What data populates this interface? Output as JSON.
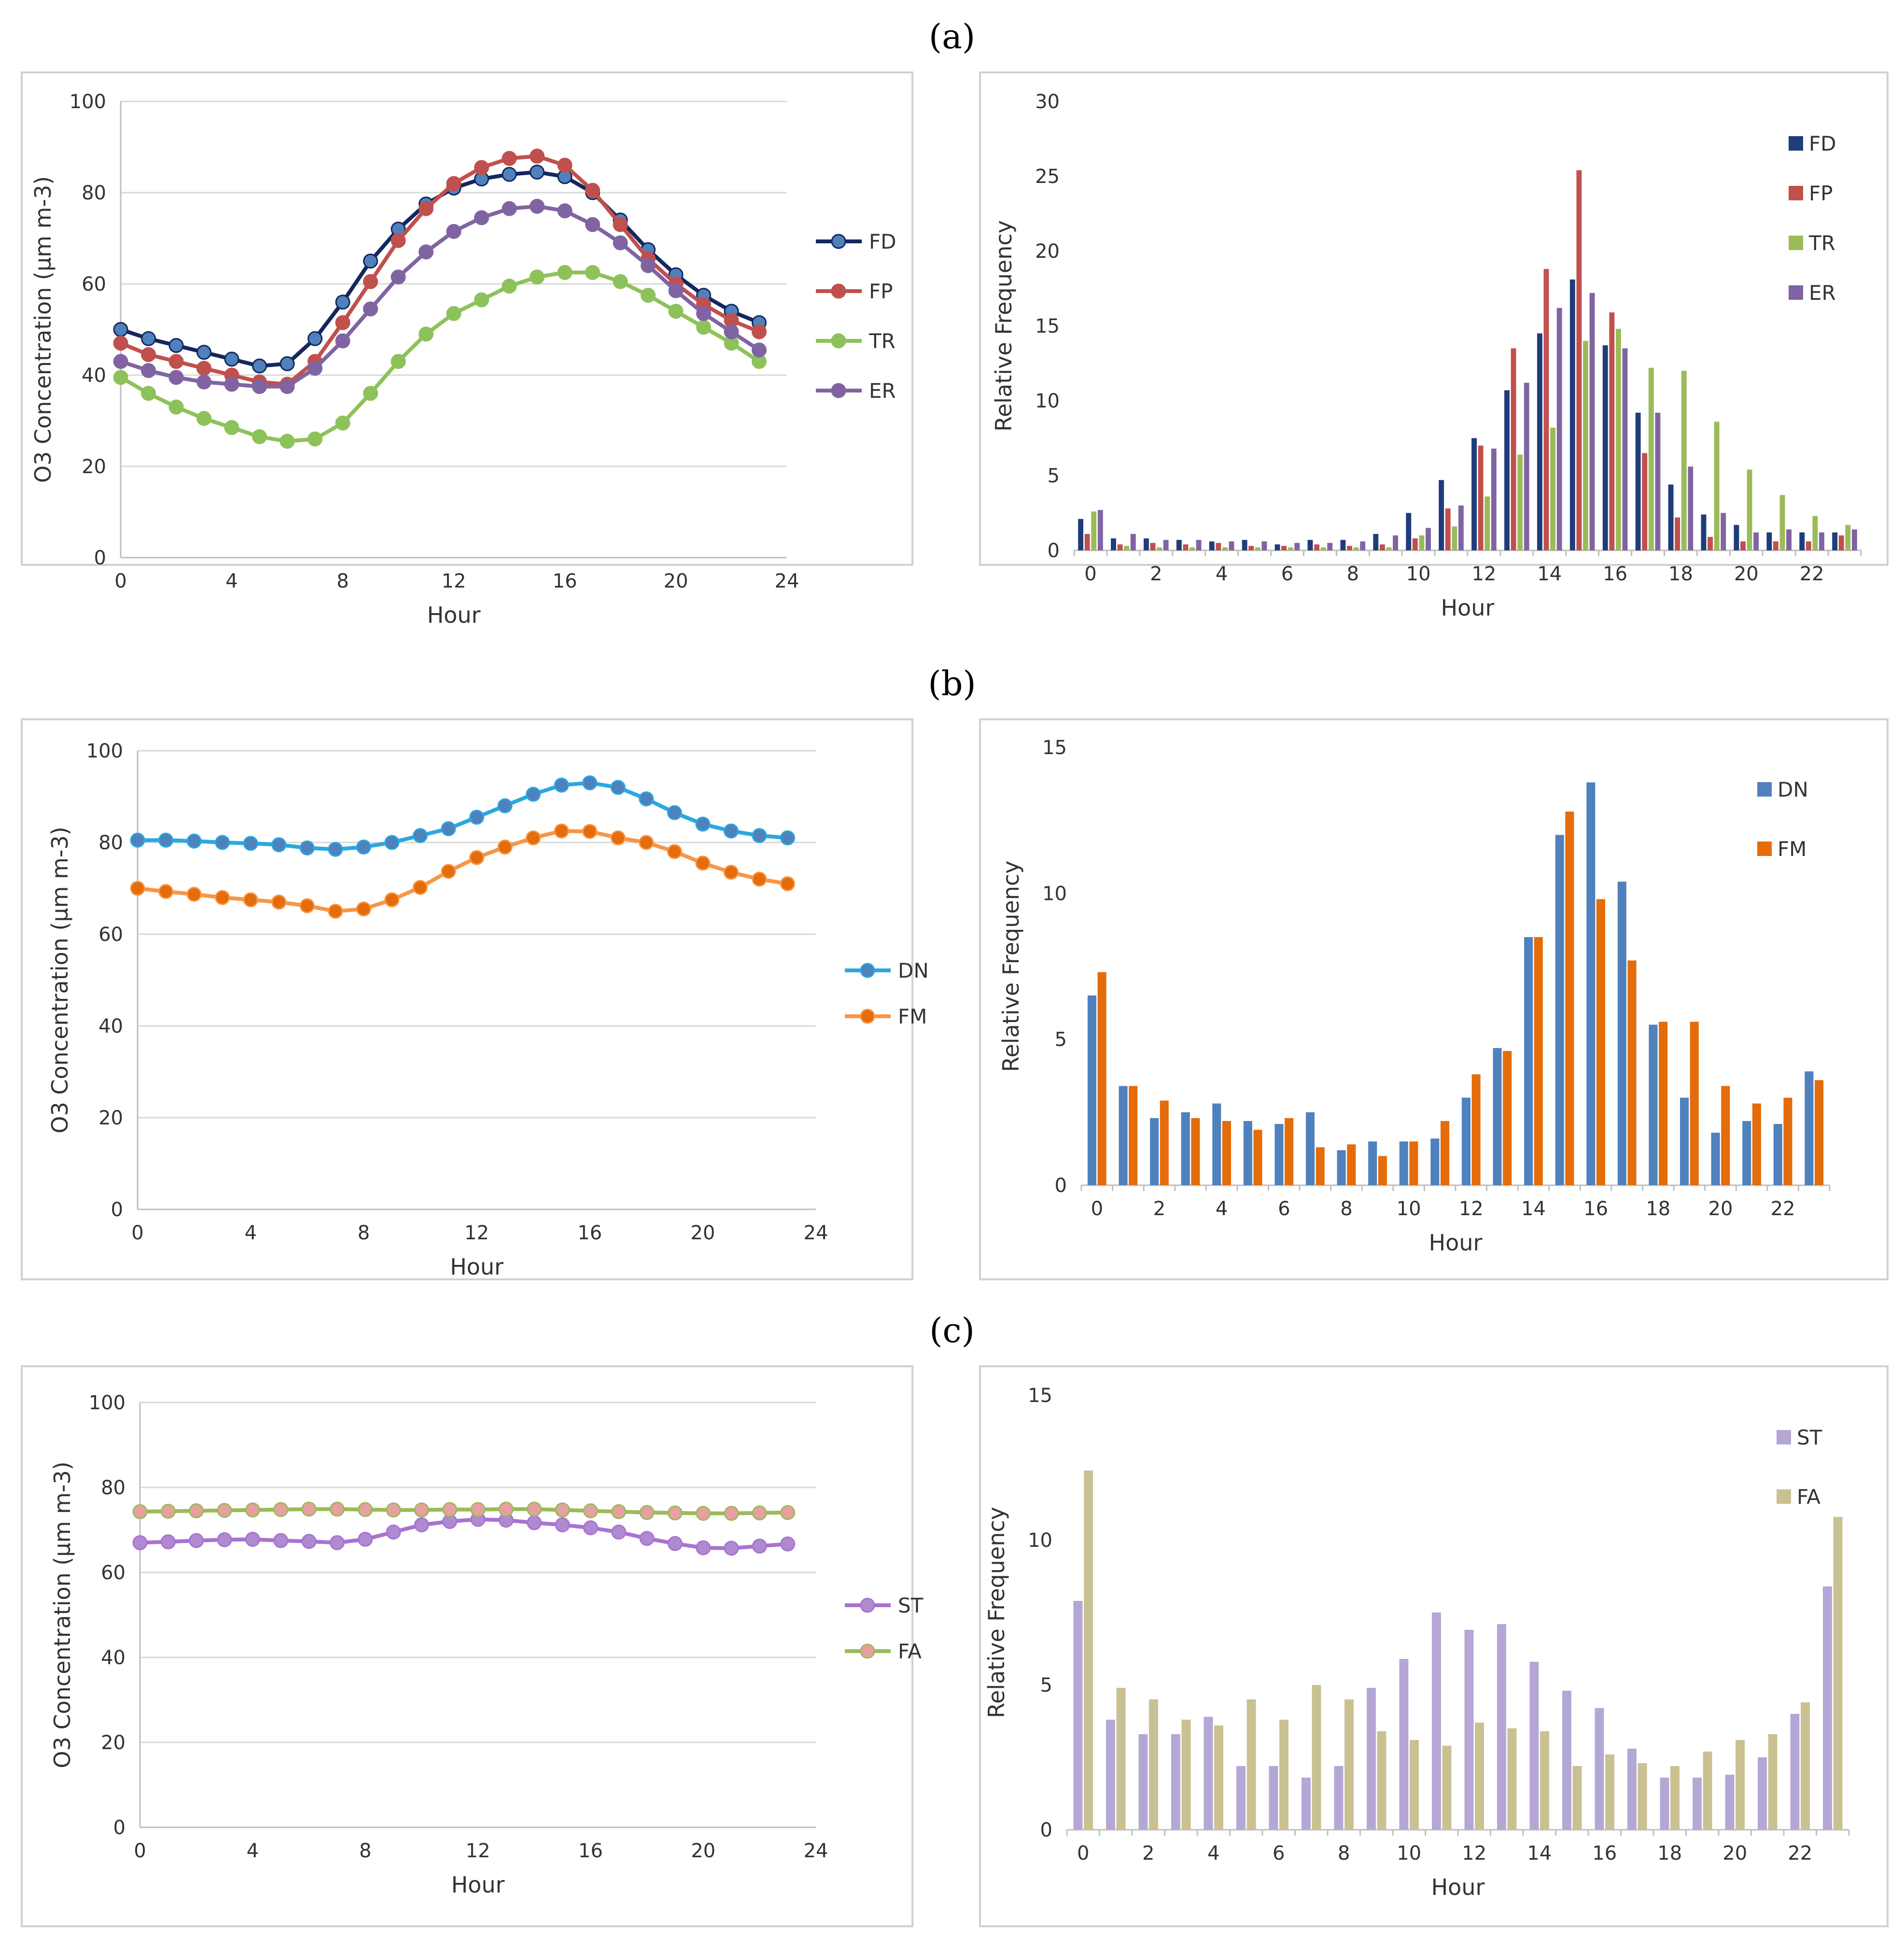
{
  "panels": [
    {
      "label": "(a)",
      "charts": [
        {
          "type": "line",
          "title": "",
          "xlabel": "Hour",
          "ylabel": "O3 Concentration (μm m-3)",
          "xlim": [
            0,
            24
          ],
          "ylim": [
            0,
            100
          ],
          "xticks": [
            0,
            4,
            8,
            12,
            16,
            20,
            24
          ],
          "yticks": [
            0,
            20,
            40,
            60,
            80,
            100
          ],
          "grid": true,
          "legend": "right",
          "x": [
            0,
            1,
            2,
            3,
            4,
            5,
            6,
            7,
            8,
            9,
            10,
            11,
            12,
            13,
            14,
            15,
            16,
            17,
            18,
            19,
            20,
            21,
            22,
            23
          ],
          "series": [
            {
              "name": "FD",
              "color": "#14275e",
              "marker_fill": "#4f81bd",
              "values": [
                50,
                48,
                46.5,
                45,
                43.5,
                42,
                42.5,
                48,
                56,
                65,
                72,
                77.5,
                81,
                83,
                84,
                84.5,
                83.5,
                80,
                74,
                67.5,
                62,
                57.5,
                54,
                51.5
              ]
            },
            {
              "name": "FP",
              "color": "#c0504d",
              "marker_fill": "#c0504d",
              "values": [
                47,
                44.5,
                43,
                41.5,
                40,
                38.5,
                38,
                43,
                51.5,
                60.5,
                69.5,
                76.5,
                82,
                85.5,
                87.5,
                88,
                86,
                80.5,
                73,
                65.5,
                60,
                55.5,
                52,
                49.5
              ]
            },
            {
              "name": "TR",
              "color": "#8dc25a",
              "marker_fill": "#8dc25a",
              "values": [
                39.5,
                36,
                33,
                30.5,
                28.5,
                26.5,
                25.5,
                26,
                29.5,
                36,
                43,
                49,
                53.5,
                56.5,
                59.5,
                61.5,
                62.5,
                62.5,
                60.5,
                57.5,
                54,
                50.5,
                47,
                43
              ]
            },
            {
              "name": "ER",
              "color": "#8064a2",
              "marker_fill": "#8064a2",
              "values": [
                43,
                41,
                39.5,
                38.5,
                38,
                37.5,
                37.5,
                41.5,
                47.5,
                54.5,
                61.5,
                67,
                71.5,
                74.5,
                76.5,
                77,
                76,
                73,
                69,
                64,
                58.5,
                53.5,
                49.5,
                45.5
              ]
            }
          ]
        },
        {
          "type": "bar",
          "title": "",
          "xlabel": "Hour",
          "ylabel": "Relative Frequency",
          "ylim": [
            0,
            30
          ],
          "yticks": [
            0,
            5,
            10,
            15,
            20,
            25,
            30
          ],
          "grid": false,
          "legend": "top-right",
          "categories": [
            0,
            1,
            2,
            3,
            4,
            5,
            6,
            7,
            8,
            9,
            10,
            11,
            12,
            13,
            14,
            15,
            16,
            17,
            18,
            19,
            20,
            21,
            22,
            23
          ],
          "xtick_labels": [
            "0",
            "2",
            "4",
            "6",
            "8",
            "10",
            "12",
            "14",
            "16",
            "18",
            "20",
            "22"
          ],
          "series": [
            {
              "name": "FD",
              "color": "#1f3d7a",
              "values": [
                2.1,
                0.8,
                0.8,
                0.7,
                0.6,
                0.7,
                0.4,
                0.7,
                0.7,
                1.1,
                2.5,
                4.7,
                7.5,
                10.7,
                14.5,
                18.1,
                13.7,
                9.2,
                4.4,
                2.4,
                1.7,
                1.2,
                1.2,
                1.2
              ]
            },
            {
              "name": "FP",
              "color": "#c0504d",
              "values": [
                1.1,
                0.4,
                0.5,
                0.4,
                0.5,
                0.3,
                0.3,
                0.4,
                0.3,
                0.4,
                0.8,
                2.8,
                7.0,
                13.5,
                18.8,
                25.4,
                15.9,
                6.5,
                2.2,
                0.9,
                0.6,
                0.6,
                0.6,
                1.0
              ]
            },
            {
              "name": "TR",
              "color": "#9bbb59",
              "values": [
                2.6,
                0.3,
                0.2,
                0.2,
                0.2,
                0.2,
                0.2,
                0.2,
                0.2,
                0.2,
                1.0,
                1.6,
                3.6,
                6.4,
                8.2,
                14.0,
                14.8,
                12.2,
                12.0,
                8.6,
                5.4,
                3.7,
                2.3,
                1.7
              ]
            },
            {
              "name": "ER",
              "color": "#8064a2",
              "values": [
                2.7,
                1.1,
                0.7,
                0.7,
                0.6,
                0.6,
                0.5,
                0.5,
                0.6,
                1.0,
                1.5,
                3.0,
                6.8,
                11.2,
                16.2,
                17.2,
                13.5,
                9.2,
                5.6,
                2.5,
                1.2,
                1.4,
                1.2,
                1.4
              ]
            }
          ]
        }
      ]
    },
    {
      "label": "(b)",
      "charts": [
        {
          "type": "line",
          "title": "",
          "xlabel": "Hour",
          "ylabel": "O3 Concentration (μm m-3)",
          "xlim": [
            0,
            24
          ],
          "ylim": [
            0,
            100
          ],
          "xticks": [
            0,
            4,
            8,
            12,
            16,
            20,
            24
          ],
          "yticks": [
            0,
            20,
            40,
            60,
            80,
            100
          ],
          "grid": true,
          "legend": "right",
          "x": [
            0,
            1,
            2,
            3,
            4,
            5,
            6,
            7,
            8,
            9,
            10,
            11,
            12,
            13,
            14,
            15,
            16,
            17,
            18,
            19,
            20,
            21,
            22,
            23
          ],
          "series": [
            {
              "name": "DN",
              "color": "#2aa8e0",
              "marker_fill": "#4f81bd",
              "values": [
                80.5,
                80.5,
                80.3,
                80,
                79.8,
                79.5,
                78.8,
                78.5,
                79,
                80,
                81.5,
                83,
                85.5,
                88,
                90.5,
                92.5,
                93,
                92,
                89.5,
                86.5,
                84,
                82.5,
                81.5,
                81
              ]
            },
            {
              "name": "FM",
              "color": "#f79646",
              "marker_fill": "#e46c0a",
              "values": [
                70,
                69.3,
                68.7,
                68,
                67.5,
                67,
                66.2,
                65,
                65.5,
                67.5,
                70.2,
                73.7,
                76.7,
                79,
                81,
                82.5,
                82.4,
                81,
                80,
                78,
                75.5,
                73.5,
                72,
                71
              ]
            }
          ]
        },
        {
          "type": "bar",
          "title": "",
          "xlabel": "Hour",
          "ylabel": "Relative Frequency",
          "ylim": [
            0,
            15
          ],
          "yticks": [
            0,
            5,
            10,
            15
          ],
          "grid": false,
          "legend": "top-right",
          "categories": [
            0,
            1,
            2,
            3,
            4,
            5,
            6,
            7,
            8,
            9,
            10,
            11,
            12,
            13,
            14,
            15,
            16,
            17,
            18,
            19,
            20,
            21,
            22,
            23
          ],
          "xtick_labels": [
            "0",
            "2",
            "4",
            "6",
            "8",
            "10",
            "12",
            "14",
            "16",
            "18",
            "20",
            "22"
          ],
          "series": [
            {
              "name": "DN",
              "color": "#4f81bd",
              "values": [
                6.5,
                3.4,
                2.3,
                2.5,
                2.8,
                2.2,
                2.1,
                2.5,
                1.2,
                1.5,
                1.5,
                1.6,
                3.0,
                4.7,
                8.5,
                12.0,
                13.8,
                10.4,
                5.5,
                3.0,
                1.8,
                2.2,
                2.1,
                3.9
              ]
            },
            {
              "name": "FM",
              "color": "#e46c0a",
              "values": [
                7.3,
                3.4,
                2.9,
                2.3,
                2.2,
                1.9,
                2.3,
                1.3,
                1.4,
                1.0,
                1.5,
                2.2,
                3.8,
                4.6,
                8.5,
                12.8,
                9.8,
                7.7,
                5.6,
                5.6,
                3.4,
                2.8,
                3.0,
                3.6
              ]
            }
          ]
        }
      ]
    },
    {
      "label": "(c)",
      "charts": [
        {
          "type": "line",
          "title": "",
          "xlabel": "Hour",
          "ylabel": "O3 Concentration (μm m-3)",
          "xlim": [
            0,
            24
          ],
          "ylim": [
            0,
            100
          ],
          "xticks": [
            0,
            4,
            8,
            12,
            16,
            20,
            24
          ],
          "yticks": [
            0,
            20,
            40,
            60,
            80,
            100
          ],
          "grid": true,
          "legend": "right",
          "x": [
            0,
            1,
            2,
            3,
            4,
            5,
            6,
            7,
            8,
            9,
            10,
            11,
            12,
            13,
            14,
            15,
            16,
            17,
            18,
            19,
            20,
            21,
            22,
            23
          ],
          "series": [
            {
              "name": "ST",
              "color": "#a873d0",
              "marker_fill": "#b08ad0",
              "values": [
                67,
                67.2,
                67.5,
                67.7,
                67.8,
                67.5,
                67.3,
                67,
                67.8,
                69.5,
                71.2,
                72,
                72.5,
                72.3,
                71.7,
                71.2,
                70.5,
                69.5,
                68,
                66.8,
                65.8,
                65.7,
                66.2,
                66.7
              ]
            },
            {
              "name": "FA",
              "color": "#9bbb59",
              "marker_fill": "#e6a0a0",
              "values": [
                74.3,
                74.4,
                74.5,
                74.6,
                74.7,
                74.8,
                74.9,
                74.9,
                74.8,
                74.7,
                74.7,
                74.8,
                74.8,
                74.9,
                74.9,
                74.7,
                74.5,
                74.3,
                74.1,
                74,
                73.9,
                73.9,
                74,
                74.1
              ]
            }
          ]
        },
        {
          "type": "bar",
          "title": "",
          "xlabel": "Hour",
          "ylabel": "Relative Frequency",
          "ylim": [
            0,
            15
          ],
          "yticks": [
            0,
            5,
            10,
            15
          ],
          "grid": false,
          "legend": "top-right",
          "categories": [
            0,
            1,
            2,
            3,
            4,
            5,
            6,
            7,
            8,
            9,
            10,
            11,
            12,
            13,
            14,
            15,
            16,
            17,
            18,
            19,
            20,
            21,
            22,
            23
          ],
          "xtick_labels": [
            "0",
            "2",
            "4",
            "6",
            "8",
            "10",
            "12",
            "14",
            "16",
            "18",
            "20",
            "22"
          ],
          "series": [
            {
              "name": "ST",
              "color": "#b4a7d6",
              "values": [
                7.9,
                3.8,
                3.3,
                3.3,
                3.9,
                2.2,
                2.2,
                1.8,
                2.2,
                4.9,
                5.9,
                7.5,
                6.9,
                7.1,
                5.8,
                4.8,
                4.2,
                2.8,
                1.8,
                1.8,
                1.9,
                2.5,
                4.0,
                8.4
              ]
            },
            {
              "name": "FA",
              "color": "#c9c191",
              "values": [
                12.4,
                4.9,
                4.5,
                3.8,
                3.6,
                4.5,
                3.8,
                5.0,
                4.5,
                3.4,
                3.1,
                2.9,
                3.7,
                3.5,
                3.4,
                2.2,
                2.6,
                2.3,
                2.2,
                2.7,
                3.1,
                3.3,
                4.4,
                10.8
              ]
            }
          ]
        }
      ]
    }
  ]
}
